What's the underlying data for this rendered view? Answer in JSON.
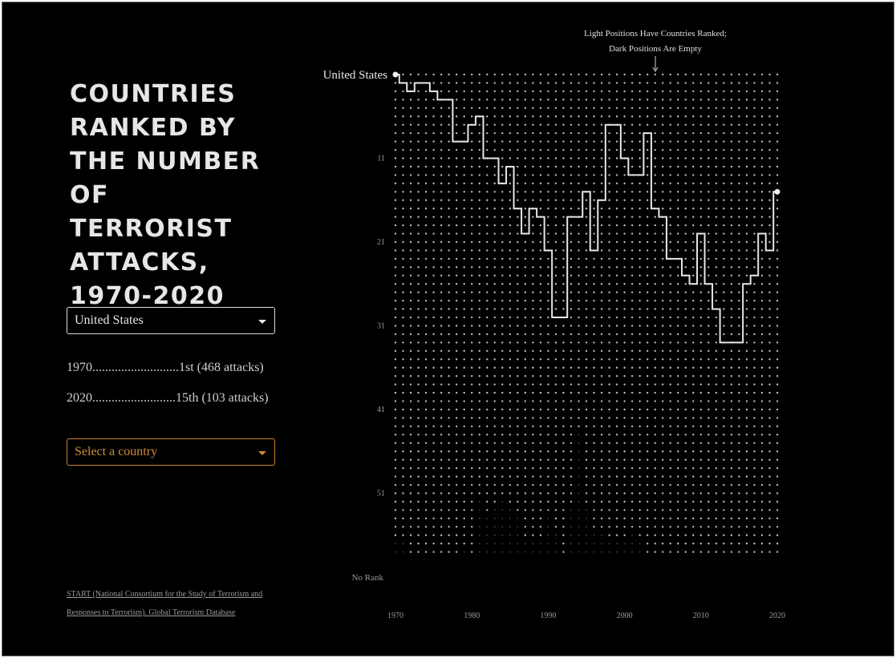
{
  "title": "Countries Ranked by the Number of Terrorist Attacks, 1970-2020",
  "selector": {
    "selected_country": "United States",
    "compare_placeholder": "Select a country"
  },
  "stats": {
    "first": "1970...........................1st (468 attacks)",
    "last": "2020..........................15th (103 attacks)"
  },
  "source": {
    "line1": "START (National Consortium for the Study of Terrorism and",
    "line2": "Responses to Terrorism). Global Terrorism Database"
  },
  "annotation": {
    "line1": "Light Positions Have Countries Ranked;",
    "line2": "Dark Positions Are Empty"
  },
  "colors": {
    "background": "#000000",
    "line": "#e6e6e6",
    "accent": "#d08c34",
    "dot_light": "#bdbdbd",
    "dot_dark": "#3a3a3a"
  },
  "chart_data": {
    "type": "line",
    "series": [
      {
        "name": "United States",
        "x": [
          1970,
          1971,
          1972,
          1973,
          1974,
          1975,
          1976,
          1977,
          1978,
          1979,
          1980,
          1981,
          1982,
          1983,
          1984,
          1985,
          1986,
          1987,
          1988,
          1989,
          1990,
          1991,
          1992,
          1993,
          1994,
          1995,
          1996,
          1997,
          1998,
          1999,
          2000,
          2001,
          2002,
          2003,
          2004,
          2005,
          2006,
          2007,
          2008,
          2009,
          2010,
          2011,
          2012,
          2013,
          2014,
          2015,
          2016,
          2017,
          2018,
          2019,
          2020
        ],
        "y": [
          1,
          2,
          3,
          2,
          2,
          3,
          4,
          4,
          9,
          9,
          7,
          6,
          11,
          11,
          14,
          12,
          17,
          20,
          17,
          18,
          22,
          30,
          30,
          18,
          18,
          15,
          22,
          16,
          7,
          7,
          11,
          13,
          13,
          8,
          17,
          18,
          23,
          23,
          25,
          26,
          20,
          26,
          29,
          33,
          33,
          33,
          26,
          25,
          20,
          22,
          15
        ]
      }
    ],
    "y_tick_labels": [
      "11",
      "21",
      "31",
      "41",
      "51"
    ],
    "y_no_rank_label": "No Rank",
    "x_tick_labels": [
      "1970",
      "1980",
      "1990",
      "2000",
      "2010",
      "2020"
    ],
    "xlim": [
      1970,
      2020
    ],
    "ylim": [
      1,
      58
    ],
    "end_label": "United States",
    "ranked_positions": [
      56,
      56,
      58,
      58,
      58,
      58,
      58,
      58,
      58,
      57,
      58,
      51,
      53,
      52,
      51,
      52,
      53,
      56,
      56,
      56,
      53,
      55,
      58,
      52,
      43,
      52,
      55,
      55,
      56,
      56,
      56,
      55,
      56,
      58,
      58,
      58,
      58,
      58,
      58,
      58,
      58,
      58,
      58,
      58,
      58,
      58,
      58,
      58,
      58,
      58,
      58
    ]
  }
}
